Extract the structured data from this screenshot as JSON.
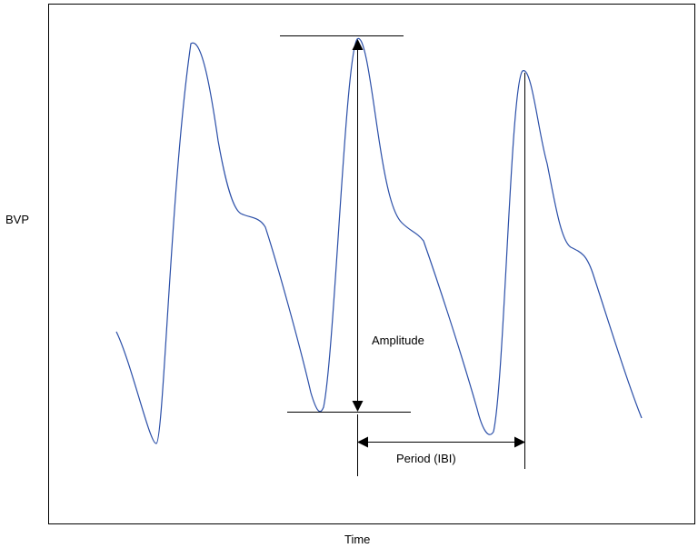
{
  "figure": {
    "ylabel": "BVP",
    "xlabel": "Time",
    "annotations": {
      "amplitude": "Amplitude",
      "period": "Period (IBI)"
    }
  },
  "colors": {
    "waveform": "#2b4fa8",
    "lines": "#000000",
    "background": "#ffffff"
  }
}
